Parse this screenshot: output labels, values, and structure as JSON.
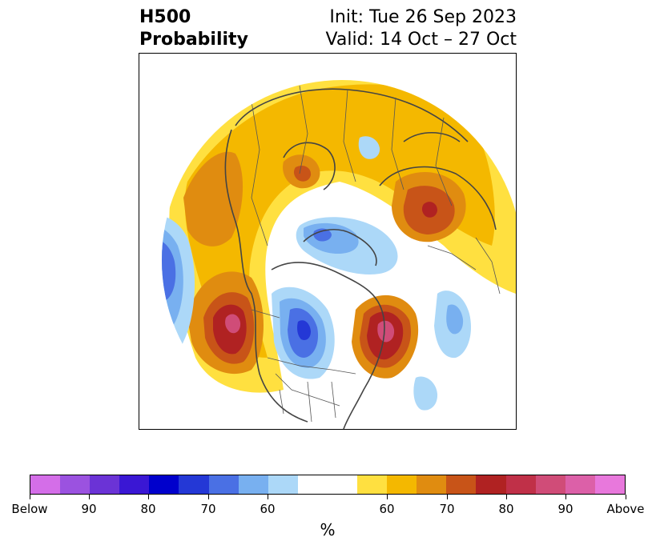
{
  "title": {
    "left_line1": "H500",
    "left_line2": "Probability",
    "right_line1": "Init: Tue 26 Sep 2023",
    "right_line2": "Valid: 14 Oct – 27 Oct"
  },
  "colorbar": {
    "unit": "%",
    "colors": [
      "#d46ee8",
      "#9b52e0",
      "#6b33d6",
      "#3a17d4",
      "#0000cc",
      "#2438d6",
      "#4a70e4",
      "#78b0f0",
      "#acd8f8",
      "#ffffff",
      "#ffffff",
      "#ffe040",
      "#f4b800",
      "#e08c10",
      "#c85418",
      "#b02222",
      "#c03048",
      "#d04c78",
      "#dc60a8",
      "#e878dc"
    ],
    "tick_labels": [
      "Below",
      "90",
      "80",
      "70",
      "60",
      "60",
      "70",
      "80",
      "90",
      "Above"
    ]
  },
  "map": {
    "projection": "polar-stereographic",
    "below_normal_color": "#4a70e4",
    "above_normal_color": "#b02222"
  }
}
